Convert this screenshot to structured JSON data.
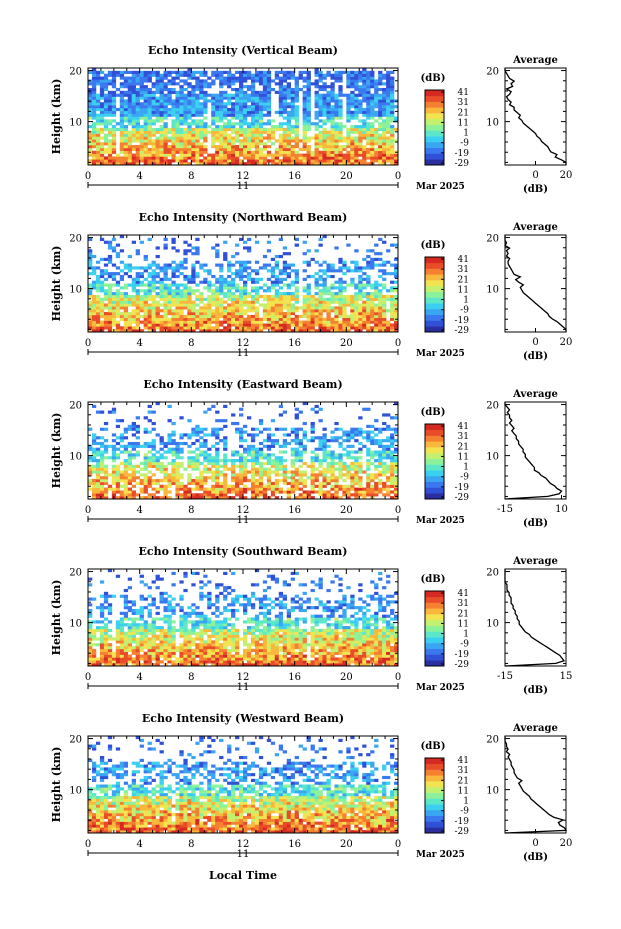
{
  "colormap": [
    "#2a2fa0",
    "#3050d8",
    "#3a78f0",
    "#3aa6f2",
    "#3cd0f0",
    "#5ce8c8",
    "#8cf29a",
    "#c4f070",
    "#f2e450",
    "#f8b83c",
    "#f48030",
    "#e84c28",
    "#d42a22"
  ],
  "colorbar": {
    "unit_label": "(dB)",
    "ticks": [
      "41",
      "31",
      "21",
      "11",
      "1",
      "-9",
      "-19",
      "-29"
    ],
    "min": -29,
    "max": 41
  },
  "x_axis": {
    "tick_labels": [
      "0",
      "4",
      "8",
      "12",
      "16",
      "20",
      "0"
    ],
    "day_label": "11",
    "month_year": "Mar 2025"
  },
  "y_axis": {
    "label": "Height (km)",
    "tick_labels": [
      "20",
      "10"
    ]
  },
  "xlabel_bottom": "Local Time",
  "chart_data": [
    {
      "type": "heatmap",
      "title": "Echo Intensity (Vertical Beam)",
      "x_range_hours": [
        0,
        24
      ],
      "y_range_km": [
        1.5,
        20.5
      ],
      "avg_profile": {
        "title": "Average",
        "xlabel": "(dB)",
        "x_ticks": [
          "0",
          "20"
        ],
        "xlim": [
          -20,
          20
        ],
        "values": [
          20,
          20,
          17,
          13,
          14,
          10,
          9,
          8,
          6,
          4,
          3,
          1,
          0,
          -2,
          -4,
          -6,
          -8,
          -9,
          -11,
          -10,
          -12,
          -14,
          -14,
          -17,
          -16,
          -18,
          -19,
          -17,
          -16,
          -19,
          -15,
          -16,
          -14,
          -17,
          -18,
          -19,
          -20,
          -20
        ]
      }
    },
    {
      "type": "heatmap",
      "title": "Echo Intensity (Northward Beam)",
      "x_range_hours": [
        0,
        24
      ],
      "y_range_km": [
        1.5,
        20.5
      ],
      "avg_profile": {
        "title": "Average",
        "xlabel": "(dB)",
        "x_ticks": [
          "0",
          "20"
        ],
        "xlim": [
          -20,
          20
        ],
        "values": [
          20,
          20,
          18,
          16,
          14,
          11,
          9,
          8,
          6,
          4,
          2,
          0,
          -2,
          -4,
          -6,
          -8,
          -9,
          -10,
          -8,
          -11,
          -13,
          -10,
          -14,
          -15,
          -16,
          -17,
          -18,
          -18,
          -17,
          -19,
          -18,
          -19,
          -17,
          -20,
          -19,
          -20,
          -20,
          -20
        ]
      }
    },
    {
      "type": "heatmap",
      "title": "Echo Intensity (Eastward Beam)",
      "x_range_hours": [
        0,
        24
      ],
      "y_range_km": [
        1.5,
        20.5
      ],
      "avg_profile": {
        "title": "Average",
        "xlabel": "(dB)",
        "x_ticks": [
          "-15",
          "10"
        ],
        "xlim": [
          -15,
          12
        ],
        "values": [
          -15,
          4,
          9,
          10,
          8,
          7,
          5,
          4,
          3,
          1,
          0,
          -2,
          -2,
          -3,
          -4,
          -5,
          -6,
          -6,
          -7,
          -7,
          -8,
          -9,
          -9,
          -10,
          -10,
          -11,
          -12,
          -11,
          -12,
          -13,
          -12,
          -13,
          -13,
          -14,
          -13,
          -14,
          -15,
          -15
        ]
      }
    },
    {
      "type": "heatmap",
      "title": "Echo Intensity (Southward Beam)",
      "x_range_hours": [
        0,
        24
      ],
      "y_range_km": [
        1.5,
        20.5
      ],
      "avg_profile": {
        "title": "Average",
        "xlabel": "(dB)",
        "x_ticks": [
          "-15",
          "15"
        ],
        "xlim": [
          -15,
          15
        ],
        "values": [
          -15,
          10,
          14,
          13,
          12,
          10,
          8,
          6,
          4,
          2,
          0,
          -2,
          -3,
          -5,
          -6,
          -7,
          -8,
          -8,
          -9,
          -9,
          -10,
          -10,
          -11,
          -11,
          -12,
          -12,
          -12,
          -13,
          -13,
          -14,
          -14,
          -14,
          -15,
          -15,
          -15,
          -15,
          -15,
          -15
        ]
      }
    },
    {
      "type": "heatmap",
      "title": "Echo Intensity (Westward Beam)",
      "x_range_hours": [
        0,
        24
      ],
      "y_range_km": [
        1.5,
        20.5
      ],
      "avg_profile": {
        "title": "Average",
        "xlabel": "(dB)",
        "x_ticks": [
          "0",
          "20"
        ],
        "xlim": [
          -20,
          20
        ],
        "values": [
          -20,
          20,
          19,
          16,
          15,
          18,
          12,
          9,
          7,
          5,
          3,
          1,
          -1,
          -3,
          -4,
          -6,
          -8,
          -9,
          -10,
          -11,
          -9,
          -12,
          -13,
          -14,
          -14,
          -15,
          -16,
          -16,
          -17,
          -18,
          -17,
          -19,
          -18,
          -19,
          -19,
          -20,
          -20,
          -20
        ]
      }
    }
  ]
}
